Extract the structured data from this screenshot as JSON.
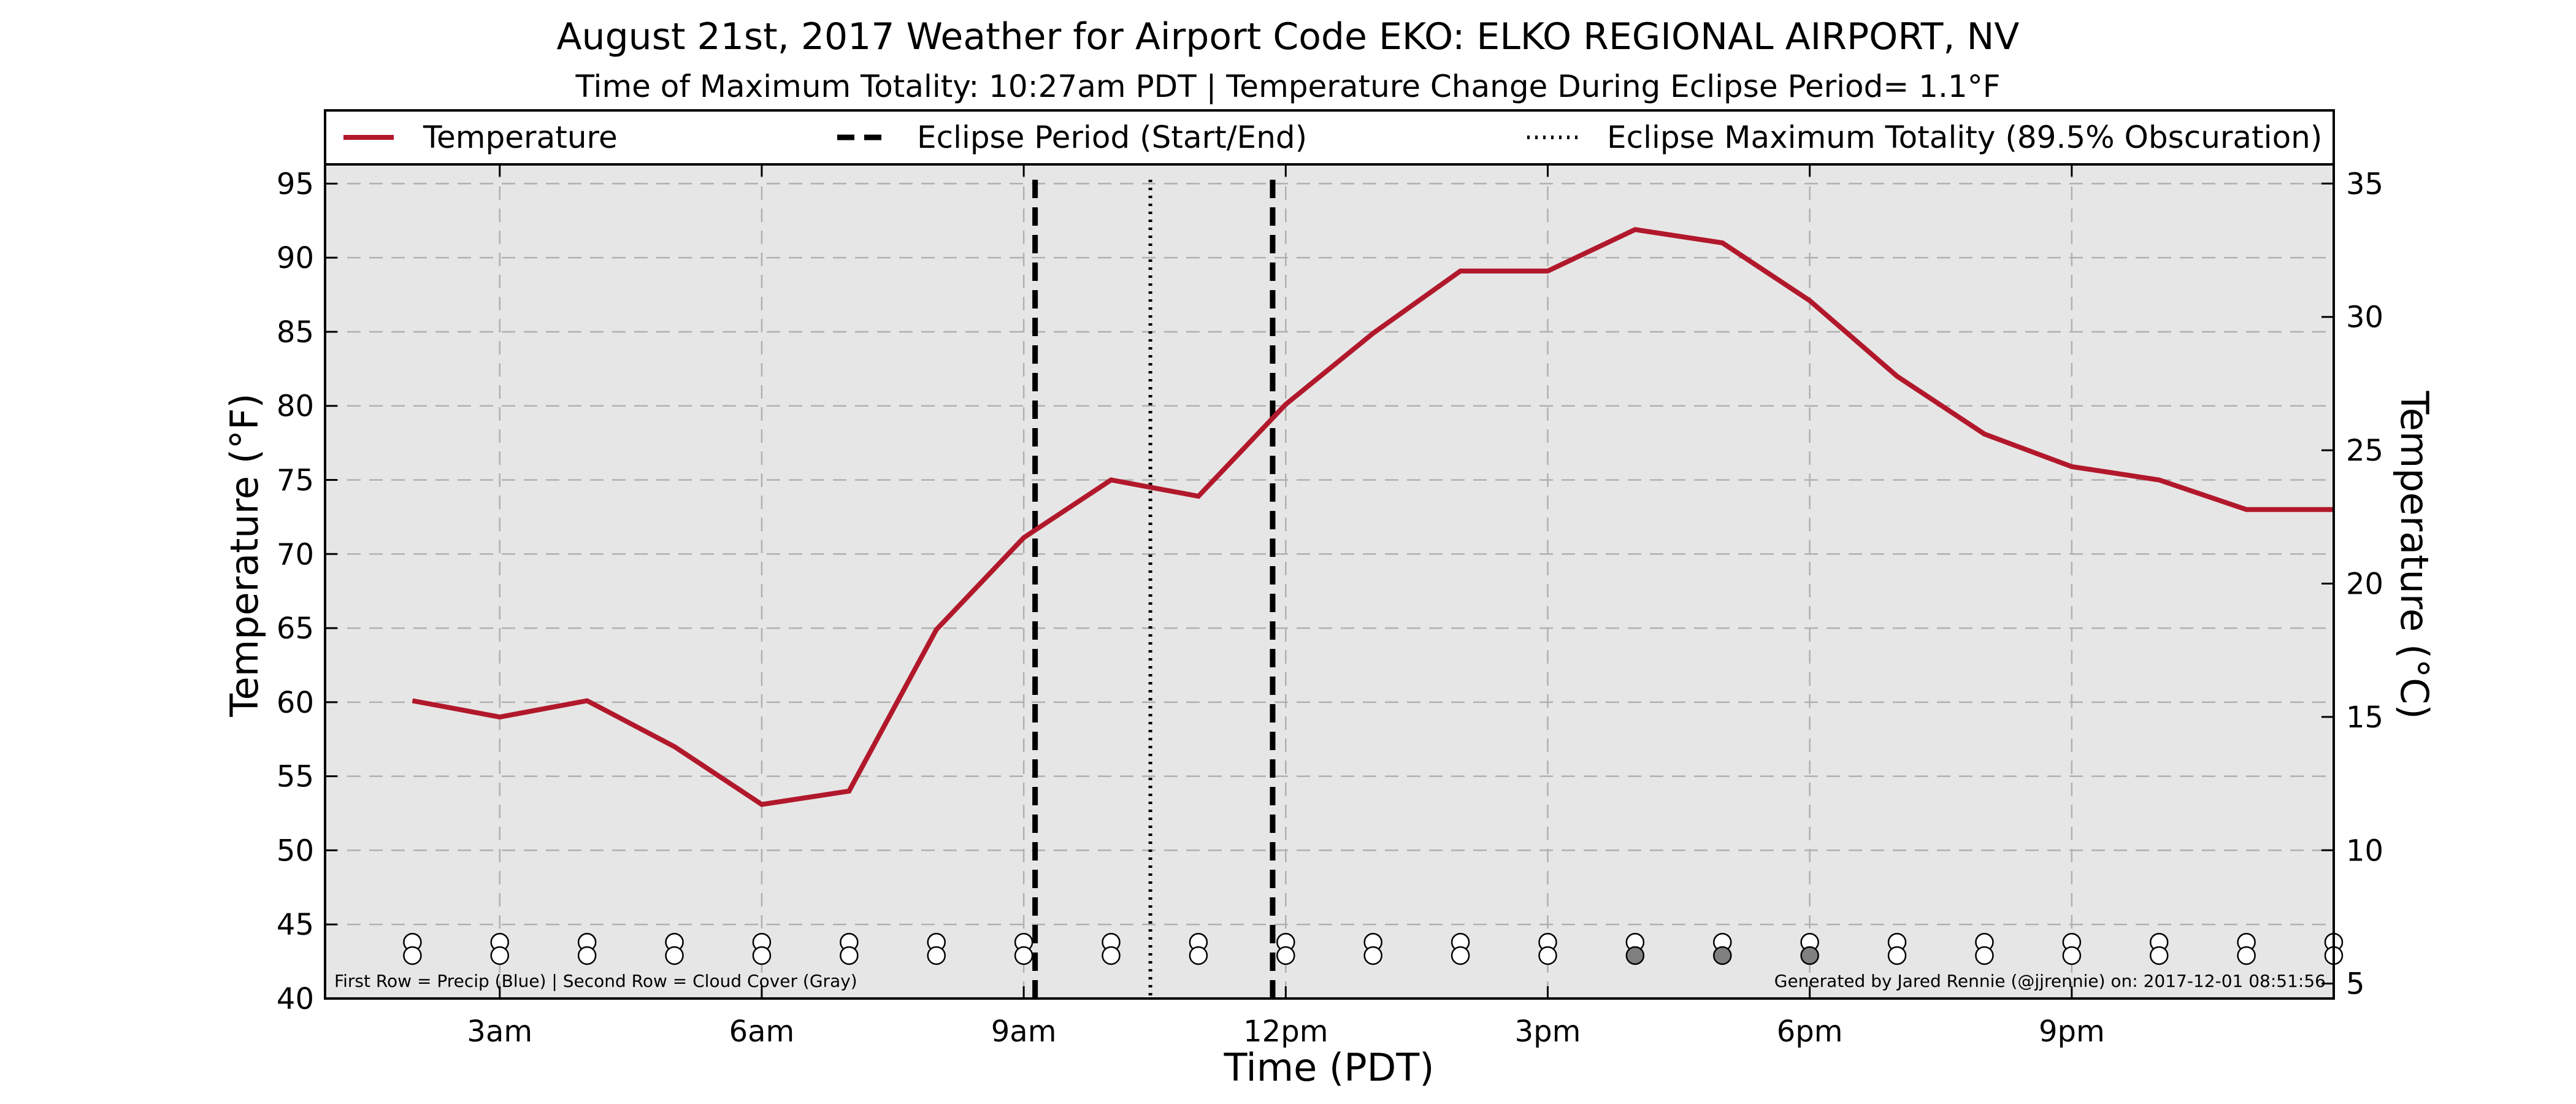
{
  "chart_data": {
    "type": "line",
    "title": "August 21st, 2017 Weather for Airport Code EKO: ELKO REGIONAL AIRPORT, NV",
    "subtitle": "Time of Maximum Totality: 10:27am PDT | Temperature Change During Eclipse Period= 1.1°F",
    "xlabel": "Time (PDT)",
    "ylabel": "Temperature (°F)",
    "ylabel_right": "Temperature (°C)",
    "xlim": [
      1,
      24
    ],
    "ylim": [
      40,
      96.3
    ],
    "ylim_right_c": [
      4.44,
      35.72
    ],
    "x_ticks": [
      {
        "x": 3,
        "label": "3am"
      },
      {
        "x": 6,
        "label": "6am"
      },
      {
        "x": 9,
        "label": "9am"
      },
      {
        "x": 12,
        "label": "12pm"
      },
      {
        "x": 15,
        "label": "3pm"
      },
      {
        "x": 18,
        "label": "6pm"
      },
      {
        "x": 21,
        "label": "9pm"
      }
    ],
    "y_ticks": [
      40,
      45,
      50,
      55,
      60,
      65,
      70,
      75,
      80,
      85,
      90,
      95
    ],
    "y_ticks_right": [
      5,
      10,
      15,
      20,
      25,
      30,
      35
    ],
    "grid": true,
    "legend_position": "top",
    "legend": [
      {
        "label": "Temperature",
        "style": "solid"
      },
      {
        "label": "Eclipse Period (Start/End)",
        "style": "dashed"
      },
      {
        "label": "Eclipse Maximum Totality (89.5% Obscuration)",
        "style": "dotted"
      }
    ],
    "series": [
      {
        "name": "Temperature",
        "color": "#b2182b",
        "x": [
          2,
          3,
          4,
          5,
          6,
          7,
          8,
          9,
          10,
          11,
          12,
          13,
          14,
          15,
          16,
          17,
          18,
          19,
          20,
          21,
          22,
          23,
          24
        ],
        "values": [
          60.1,
          59,
          60.1,
          57,
          53.1,
          54,
          64.9,
          71.1,
          75,
          73.9,
          80.1,
          84.9,
          89.1,
          89.1,
          91.9,
          91,
          87.1,
          82,
          78.1,
          75.9,
          75,
          73,
          73
        ]
      }
    ],
    "eclipse_start_x": 9.13,
    "eclipse_end_x": 11.85,
    "eclipse_max_x": 10.45,
    "markers": {
      "x": [
        2,
        3,
        4,
        5,
        6,
        7,
        8,
        9,
        10,
        11,
        12,
        13,
        14,
        15,
        16,
        17,
        18,
        19,
        20,
        21,
        22,
        23,
        24
      ],
      "precip_row": [
        0,
        0,
        0,
        0,
        0,
        0,
        0,
        0,
        0,
        0,
        0,
        0,
        0,
        0,
        0,
        0,
        0,
        0,
        0,
        0,
        0,
        0,
        0
      ],
      "cloud_row": [
        0,
        0,
        0,
        0,
        0,
        0,
        0,
        0,
        0,
        0,
        0,
        0,
        0,
        0,
        1,
        1,
        1,
        0,
        0,
        0,
        0,
        0,
        0
      ],
      "precip_y": 43.8,
      "cloud_y": 42.9
    },
    "footnote_left": "First Row = Precip (Blue) | Second Row = Cloud Cover (Gray)",
    "footnote_right": "Generated by Jared Rennie (@jjrennie) on: 2017-12-01 08:51:56",
    "colors": {
      "temperature": "#b2182b",
      "plot_background": "#e6e6e6",
      "grid": "#b0b0b0",
      "cloud_fill": "#808080"
    }
  }
}
